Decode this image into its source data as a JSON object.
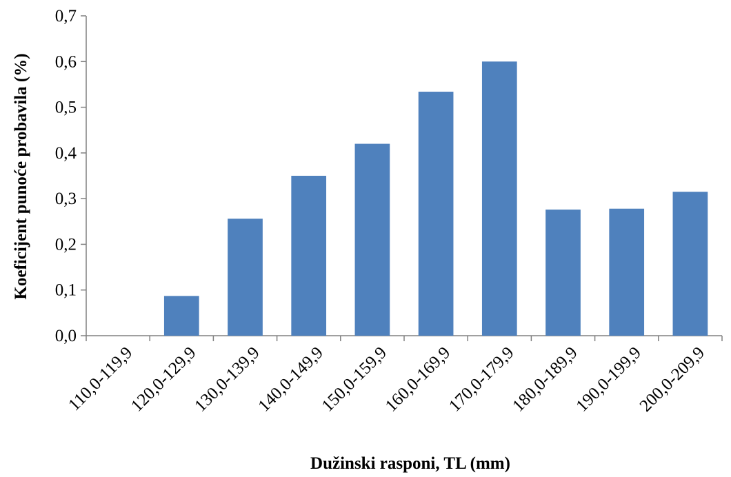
{
  "chart_data": {
    "type": "bar",
    "xlabel": "Dužinski rasponi, TL (mm)",
    "ylabel": "Koeficijent punoće probavila (%)",
    "categories": [
      "110,0-119,9",
      "120,0-129,9",
      "130,0-139,9",
      "140,0-149,9",
      "150,0-159,9",
      "160,0-169,9",
      "170,0-179,9",
      "180,0-189,9",
      "190,0-199,9",
      "200,0-209,9"
    ],
    "values": [
      0.0,
      0.087,
      0.256,
      0.35,
      0.42,
      0.534,
      0.6,
      0.276,
      0.278,
      0.315
    ],
    "ylim": [
      0,
      0.7
    ],
    "yticks": [
      0,
      0.1,
      0.2,
      0.3,
      0.4,
      0.5,
      0.6,
      0.7
    ],
    "ytick_labels": [
      "0,0",
      "0,1",
      "0,2",
      "0,3",
      "0,4",
      "0,5",
      "0,6",
      "0,7"
    ],
    "bar_color": "#4f81bd",
    "grid": false,
    "legend": "none"
  }
}
